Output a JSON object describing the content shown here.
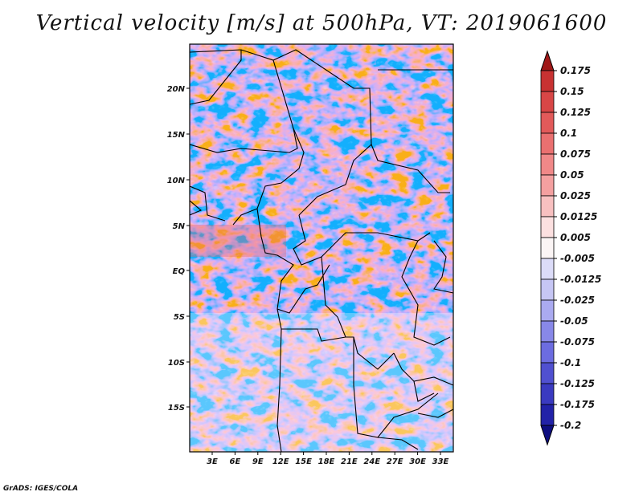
{
  "title": "Vertical velocity [m/s] at 500hPa, VT: 2019061600",
  "credit": "GrADS: IGES/COLA",
  "map": {
    "lat_ticks": [
      "20N",
      "15N",
      "10N",
      "5N",
      "EQ",
      "5S",
      "10S",
      "15S"
    ],
    "lon_ticks": [
      "3E",
      "6E",
      "9E",
      "12E",
      "15E",
      "18E",
      "21E",
      "24E",
      "27E",
      "30E",
      "33E"
    ]
  },
  "colorbar": {
    "levels": [
      "0.175",
      "0.15",
      "0.125",
      "0.1",
      "0.075",
      "0.05",
      "0.025",
      "0.0125",
      "0.005",
      "-0.005",
      "-0.0125",
      "-0.025",
      "-0.05",
      "-0.075",
      "-0.1",
      "-0.125",
      "-0.175",
      "-0.2"
    ],
    "colors": [
      "#b22222",
      "#c83232",
      "#d84646",
      "#e25a5a",
      "#ea7070",
      "#f08888",
      "#f4a0a0",
      "#f8c0c0",
      "#fce0e0",
      "#fbf5f5",
      "#dcdcf8",
      "#c6c6f4",
      "#aaaaf0",
      "#8888e8",
      "#6c6ce0",
      "#5050d0",
      "#3a3ac0",
      "#2222a8",
      "#10108a"
    ],
    "high_color": "#a01818",
    "low_color": "#0e0e80"
  }
}
